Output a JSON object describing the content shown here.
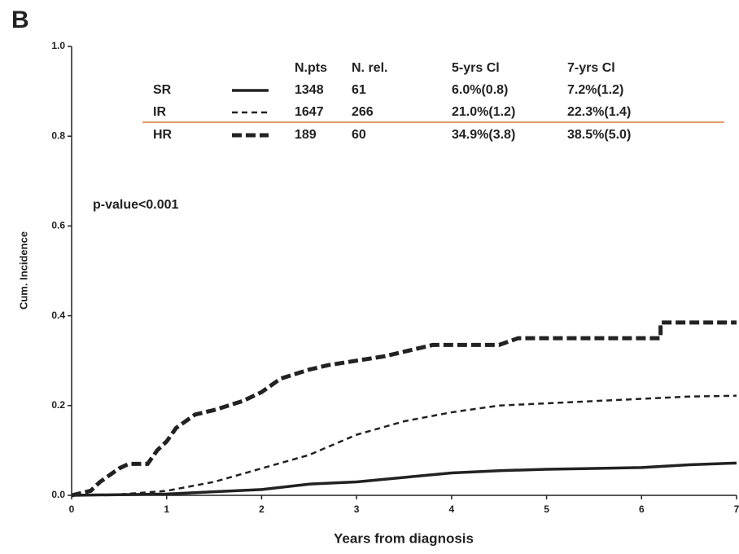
{
  "panel_label": "B",
  "chart_data": {
    "type": "line",
    "xlabel": "Years from diagnosis",
    "ylabel": "Cum. Incidence",
    "annotation": "p-value<0.001",
    "xlim": [
      0,
      7
    ],
    "xticks": [
      0,
      1,
      2,
      3,
      4,
      5,
      6,
      7
    ],
    "ylim": [
      0,
      1
    ],
    "yticks": [
      {
        "value": 0,
        "label": "0.0"
      },
      {
        "value": 0.2,
        "label": "0.2"
      },
      {
        "value": 0.4,
        "label": "0.4"
      },
      {
        "value": 0.6,
        "label": "0.6"
      },
      {
        "value": 0.8,
        "label": "0.8"
      },
      {
        "value": 1,
        "label": "1.0"
      }
    ],
    "series": [
      {
        "name": "SR",
        "color": "#222222",
        "style": "solid",
        "x": [
          0,
          1,
          2,
          2.5,
          3,
          3.5,
          4,
          4.5,
          5,
          5.5,
          6,
          6.5,
          7
        ],
        "values": [
          0,
          0.003,
          0.013,
          0.025,
          0.03,
          0.04,
          0.05,
          0.055,
          0.058,
          0.06,
          0.062,
          0.068,
          0.072
        ]
      },
      {
        "name": "IR",
        "color": "#222222",
        "style": "dashed",
        "x": [
          0,
          0.5,
          1,
          1.5,
          2,
          2.5,
          3,
          3.5,
          4,
          4.5,
          5,
          5.5,
          6,
          6.5,
          7
        ],
        "values": [
          0,
          0.002,
          0.01,
          0.03,
          0.06,
          0.09,
          0.135,
          0.165,
          0.185,
          0.2,
          0.205,
          0.21,
          0.215,
          0.22,
          0.222
        ]
      },
      {
        "name": "HR",
        "color": "#222222",
        "style": "bold-dashed",
        "x": [
          0,
          0.2,
          0.3,
          0.5,
          0.6,
          0.8,
          0.9,
          1,
          1.1,
          1.3,
          1.5,
          1.8,
          2,
          2.2,
          2.5,
          2.7,
          3,
          3.3,
          3.5,
          3.8,
          4.5,
          4.7,
          6.2,
          6.2,
          7
        ],
        "values": [
          0,
          0.01,
          0.03,
          0.06,
          0.07,
          0.07,
          0.1,
          0.12,
          0.15,
          0.18,
          0.19,
          0.21,
          0.23,
          0.26,
          0.28,
          0.29,
          0.3,
          0.31,
          0.32,
          0.335,
          0.335,
          0.35,
          0.35,
          0.385,
          0.385
        ]
      }
    ],
    "legend_table": {
      "columns": [
        "N.pts",
        "N. rel.",
        "5-yrs Cl",
        "7-yrs Cl"
      ],
      "rows": [
        [
          "1348",
          "61",
          "6.0%(0.8)",
          "7.2%(1.2)"
        ],
        [
          "1647",
          "266",
          "21.0%(1.2)",
          "22.3%(1.4)"
        ],
        [
          "189",
          "60",
          "34.9%(3.8)",
          "38.5%(5.0)"
        ]
      ]
    }
  }
}
